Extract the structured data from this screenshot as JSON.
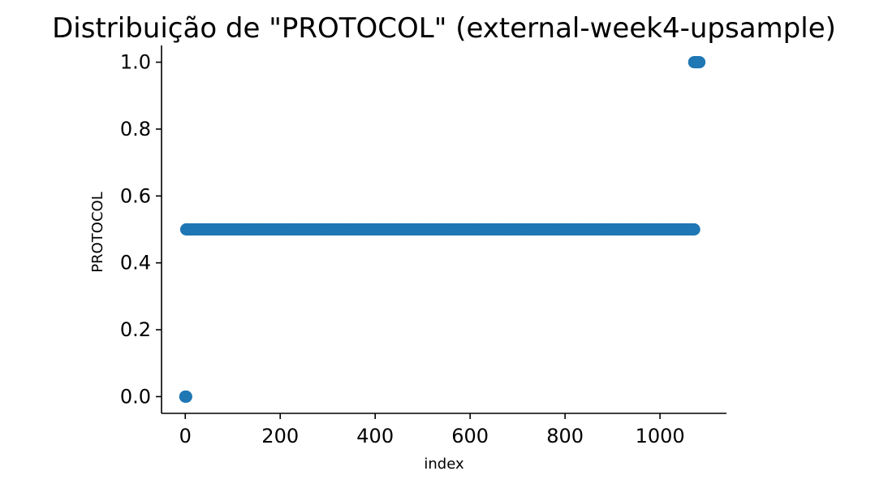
{
  "chart_data": {
    "type": "scatter",
    "title": "Distribuição de \"PROTOCOL\" (external-week4-upsample)",
    "xlabel": "index",
    "ylabel": "PROTOCOL",
    "xlim": [
      -50,
      1140
    ],
    "ylim": [
      -0.05,
      1.05
    ],
    "x_ticks": [
      0,
      200,
      400,
      600,
      800,
      1000
    ],
    "x_tick_labels": [
      "0",
      "200",
      "400",
      "600",
      "800",
      "1000"
    ],
    "y_ticks": [
      0.0,
      0.2,
      0.4,
      0.6,
      0.8,
      1.0
    ],
    "y_tick_labels": [
      "0.0",
      "0.2",
      "0.4",
      "0.6",
      "0.8",
      "1.0"
    ],
    "grid": false,
    "marker_color": "#1f77b4",
    "series": [
      {
        "segments": [
          {
            "x_start": 0,
            "x_end": 2,
            "y": 0.0
          },
          {
            "x_start": 2,
            "x_end": 1072,
            "y": 0.5
          },
          {
            "x_start": 1072,
            "x_end": 1083,
            "y": 1.0
          }
        ]
      }
    ]
  }
}
